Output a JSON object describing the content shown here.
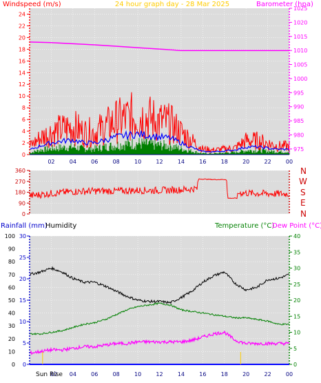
{
  "header": {
    "left_title": "Windspeed (m/s)",
    "center_title": "24 hour graph day - 28 Mar 2025",
    "right_title": "Barometer (hpa)"
  },
  "bottom_header": {
    "rainfall": "Rainfall (mm)",
    "humidity": "Humidity",
    "temperature": "Temperature (°C)",
    "dewpoint": "Dew Point (°C)"
  },
  "sun_rise_label": "Sun Rise",
  "compass": [
    "N",
    "W",
    "S",
    "E",
    "N"
  ],
  "colors": {
    "red": "#ff0000",
    "blue": "#0000ff",
    "green": "#008000",
    "magenta": "#ff00ff",
    "black": "#000000",
    "darkred": "#cc0000",
    "yellow": "#ffcc00",
    "plot_bg": "#dcdcdc"
  },
  "chart_data": [
    {
      "type": "line",
      "name": "wind-and-barometer",
      "x_ticks": [
        "02",
        "04",
        "06",
        "08",
        "10",
        "12",
        "14",
        "16",
        "18",
        "20",
        "22",
        "00"
      ],
      "x_range_hours": [
        0,
        24
      ],
      "y_left": {
        "label": "Windspeed (m/s)",
        "range": [
          0,
          25
        ],
        "ticks": [
          0,
          2,
          4,
          6,
          8,
          10,
          12,
          14,
          16,
          18,
          20,
          22,
          24
        ]
      },
      "y_right": {
        "label": "Barometer (hpa)",
        "range": [
          973,
          1025
        ],
        "ticks": [
          975,
          980,
          985,
          990,
          995,
          1000,
          1005,
          1010,
          1015,
          1020,
          1025
        ]
      },
      "series": [
        {
          "name": "Windspeed gust",
          "color": "#ff0000",
          "x": [
            0,
            1,
            2,
            3,
            4,
            5,
            6,
            7,
            8,
            9,
            10,
            11,
            12,
            13,
            14,
            15,
            16,
            17,
            18,
            19,
            20,
            21,
            22,
            23,
            24
          ],
          "y": [
            1.5,
            3,
            4,
            4.5,
            5,
            4,
            4,
            5,
            6,
            6.5,
            7,
            6.5,
            6,
            5.5,
            4,
            2.5,
            1,
            0.8,
            1,
            1.2,
            2.5,
            2.5,
            2,
            1.5,
            1.5
          ]
        },
        {
          "name": "Windspeed average",
          "color": "#0000ff",
          "x": [
            0,
            1,
            2,
            3,
            4,
            5,
            6,
            7,
            8,
            9,
            10,
            11,
            12,
            13,
            14,
            15,
            16,
            17,
            18,
            19,
            20,
            21,
            22,
            23,
            24
          ],
          "y": [
            0.8,
            1.5,
            2,
            2.3,
            2.5,
            2,
            2,
            2.5,
            3,
            3.3,
            3.5,
            3.3,
            3,
            2.8,
            2,
            1.2,
            0.5,
            0.5,
            0.6,
            0.8,
            1.3,
            1.3,
            1.1,
            0.9,
            0.9
          ]
        },
        {
          "name": "Windspeed low",
          "color": "#008000",
          "x": [
            0,
            1,
            2,
            3,
            4,
            5,
            6,
            7,
            8,
            9,
            10,
            11,
            12,
            13,
            14,
            15,
            16,
            17,
            18,
            19,
            20,
            21,
            22,
            23,
            24
          ],
          "y": [
            0.3,
            0.8,
            1,
            1.2,
            1.3,
            1,
            1,
            1.3,
            1.6,
            1.8,
            1.9,
            1.8,
            1.6,
            1.5,
            1,
            0.6,
            0.2,
            0.2,
            0.3,
            0.4,
            0.7,
            0.7,
            0.6,
            0.5,
            0.5
          ]
        },
        {
          "name": "Barometer",
          "color": "#ff00ff",
          "axis": "right",
          "x": [
            0,
            2,
            4,
            6,
            8,
            10,
            12,
            14,
            16,
            18,
            20,
            22,
            24
          ],
          "y": [
            1013,
            1012.8,
            1012.4,
            1012,
            1011.5,
            1011,
            1010.5,
            1010,
            1010,
            1010,
            1010,
            1010,
            1010
          ]
        }
      ]
    },
    {
      "type": "line",
      "name": "wind-direction",
      "y_left": {
        "range": [
          0,
          360
        ],
        "ticks": [
          0,
          90,
          180,
          270,
          360
        ]
      },
      "y_right_labels": [
        "N",
        "W",
        "S",
        "E",
        "N"
      ],
      "series": [
        {
          "name": "Wind direction",
          "color": "#ff0000",
          "x": [
            0,
            2,
            4,
            6,
            8,
            10,
            12,
            14,
            15.5,
            15.6,
            17,
            18.2,
            18.3,
            19.2,
            19.3,
            21,
            24
          ],
          "y": [
            150,
            170,
            185,
            190,
            190,
            195,
            195,
            200,
            210,
            290,
            285,
            285,
            130,
            130,
            175,
            170,
            165
          ]
        }
      ]
    },
    {
      "type": "line",
      "name": "rain-humidity-temperature",
      "y_left_outer": {
        "label": "Humidity",
        "range": [
          0,
          100
        ],
        "ticks": [
          0,
          10,
          20,
          30,
          40,
          50,
          60,
          70,
          80,
          90,
          100
        ]
      },
      "y_left_inner": {
        "label": "Rainfall (mm)",
        "range": [
          0,
          30
        ],
        "ticks": [
          0,
          5,
          10,
          15,
          20,
          25,
          30
        ]
      },
      "y_right": {
        "label": "Temperature (°C)",
        "range": [
          0,
          40
        ],
        "ticks": [
          0,
          5,
          10,
          15,
          20,
          25,
          30,
          35,
          40
        ]
      },
      "series": [
        {
          "name": "Humidity",
          "color": "#000000",
          "axis": "left",
          "x": [
            0,
            1,
            2,
            3,
            4,
            5,
            6,
            7,
            8,
            9,
            10,
            11,
            12,
            13,
            14,
            15,
            16,
            17,
            18,
            19,
            20,
            21,
            22,
            23,
            24
          ],
          "y": [
            70,
            72,
            75,
            72,
            67,
            64,
            64,
            61,
            57,
            53,
            50,
            49,
            49,
            48,
            52,
            57,
            64,
            69,
            72,
            63,
            58,
            60,
            66,
            67,
            70
          ]
        },
        {
          "name": "Temperature",
          "color": "#008000",
          "axis": "right",
          "x": [
            0,
            1,
            2,
            3,
            4,
            5,
            6,
            7,
            8,
            9,
            10,
            11,
            12,
            13,
            14,
            15,
            16,
            17,
            18,
            19,
            20,
            21,
            22,
            23,
            24
          ],
          "y": [
            9.5,
            9.5,
            10,
            10.5,
            11.5,
            12.5,
            13,
            14,
            15.5,
            17,
            18,
            18.5,
            19,
            18.5,
            17,
            16.5,
            16,
            15.5,
            15,
            14.5,
            14.5,
            14,
            13.5,
            12.5,
            12.5
          ]
        },
        {
          "name": "Dew Point",
          "color": "#ff00ff",
          "axis": "right",
          "x": [
            0,
            1,
            2,
            3,
            4,
            5,
            6,
            7,
            8,
            9,
            10,
            11,
            12,
            13,
            14,
            15,
            16,
            17,
            18,
            19,
            20,
            21,
            22,
            23,
            24
          ],
          "y": [
            3.5,
            4,
            4.5,
            4.5,
            5,
            5.5,
            5.5,
            6,
            6.5,
            6.5,
            7,
            7,
            7,
            7,
            7,
            7.5,
            8.5,
            9.5,
            10,
            7.5,
            6.5,
            6.5,
            6.5,
            6.5,
            6.5
          ]
        },
        {
          "name": "Rainfall",
          "color": "#0000ff",
          "axis": "left_inner",
          "x": [
            0,
            24
          ],
          "y": [
            0,
            0
          ]
        }
      ],
      "sun_rise_hour": 1.2,
      "sun_set_hour": 19.5
    }
  ]
}
